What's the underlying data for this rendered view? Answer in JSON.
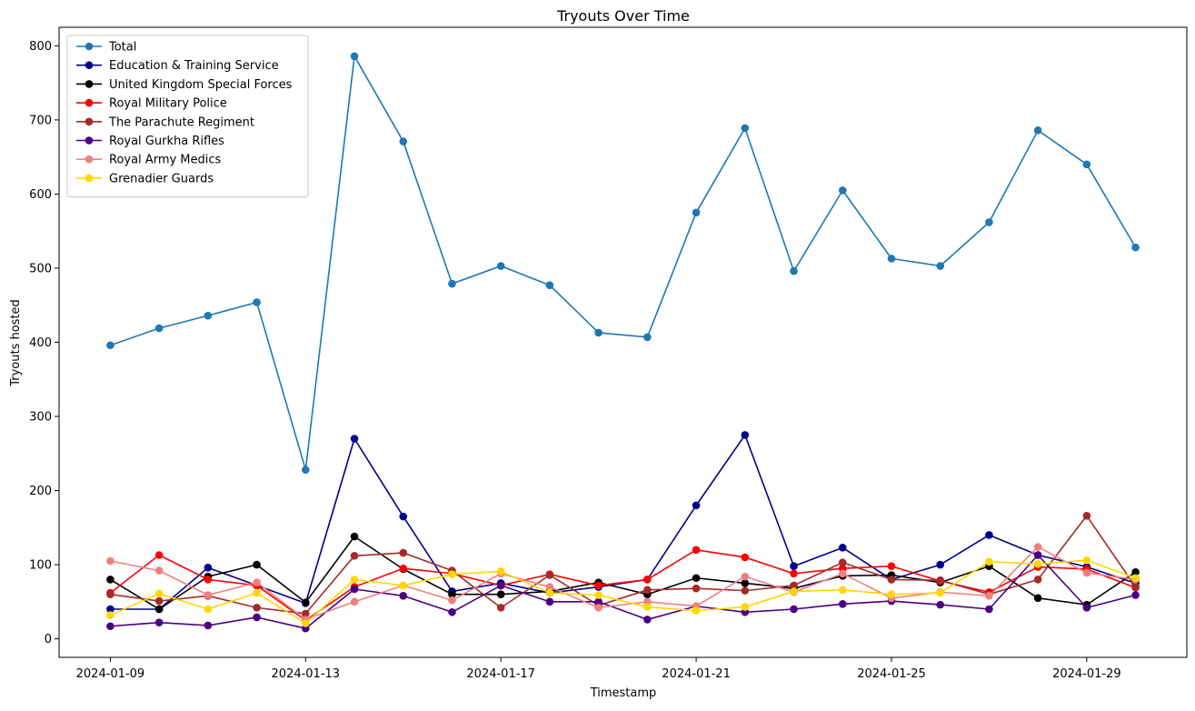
{
  "chart_data": {
    "type": "line",
    "title": "Tryouts Over Time",
    "xlabel": "Timestamp",
    "ylabel": "Tryouts hosted",
    "x": [
      "2024-01-09",
      "2024-01-10",
      "2024-01-11",
      "2024-01-12",
      "2024-01-13",
      "2024-01-14",
      "2024-01-15",
      "2024-01-16",
      "2024-01-17",
      "2024-01-18",
      "2024-01-19",
      "2024-01-20",
      "2024-01-21",
      "2024-01-22",
      "2024-01-23",
      "2024-01-24",
      "2024-01-25",
      "2024-01-26",
      "2024-01-27",
      "2024-01-28",
      "2024-01-29",
      "2024-01-30"
    ],
    "x_ticks": [
      "2024-01-09",
      "2024-01-13",
      "2024-01-17",
      "2024-01-21",
      "2024-01-25",
      "2024-01-29"
    ],
    "y_ticks": [
      0,
      100,
      200,
      300,
      400,
      500,
      600,
      700,
      800
    ],
    "ylim": [
      -25,
      825
    ],
    "grid": false,
    "legend_position": "top-left",
    "series": [
      {
        "name": "Total",
        "color": "#1f77b4",
        "values": [
          396,
          419,
          436,
          454,
          228,
          786,
          671,
          479,
          503,
          477,
          413,
          407,
          575,
          689,
          496,
          605,
          513,
          503,
          562,
          686,
          640,
          528
        ]
      },
      {
        "name": "Education & Training Service",
        "color": "#00008b",
        "values": [
          40,
          40,
          96,
          72,
          48,
          270,
          165,
          64,
          75,
          62,
          70,
          80,
          180,
          275,
          98,
          123,
          80,
          100,
          140,
          113,
          97,
          75
        ]
      },
      {
        "name": "United Kingdom Special Forces",
        "color": "#000000",
        "values": [
          80,
          40,
          84,
          100,
          49,
          138,
          94,
          60,
          60,
          64,
          76,
          60,
          82,
          75,
          68,
          85,
          86,
          76,
          98,
          55,
          46,
          90
        ]
      },
      {
        "name": "Royal Military Police",
        "color": "#ff0000",
        "values": [
          62,
          113,
          80,
          72,
          25,
          70,
          95,
          88,
          72,
          87,
          72,
          80,
          120,
          110,
          88,
          95,
          98,
          78,
          63,
          97,
          94,
          69
        ]
      },
      {
        "name": "The Parachute Regiment",
        "color": "#a52a2a",
        "values": [
          60,
          51,
          58,
          42,
          34,
          112,
          116,
          92,
          42,
          86,
          45,
          66,
          68,
          65,
          72,
          103,
          80,
          79,
          60,
          80,
          166,
          70
        ]
      },
      {
        "name": "Royal Gurkha Rifles",
        "color": "#4b0082",
        "values": [
          17,
          22,
          18,
          29,
          14,
          67,
          58,
          36,
          72,
          50,
          50,
          26,
          44,
          36,
          40,
          47,
          51,
          46,
          40,
          113,
          42,
          59
        ]
      },
      {
        "name": "Royal Army Medics",
        "color": "#f08080",
        "values": [
          105,
          92,
          59,
          76,
          26,
          50,
          72,
          52,
          88,
          70,
          42,
          50,
          44,
          84,
          63,
          88,
          55,
          63,
          58,
          124,
          89,
          80
        ]
      },
      {
        "name": "Grenadier Guards",
        "color": "#ffd700",
        "values": [
          32,
          61,
          40,
          62,
          21,
          80,
          72,
          87,
          91,
          62,
          59,
          43,
          38,
          43,
          64,
          66,
          60,
          62,
          104,
          101,
          106,
          82
        ]
      }
    ]
  }
}
